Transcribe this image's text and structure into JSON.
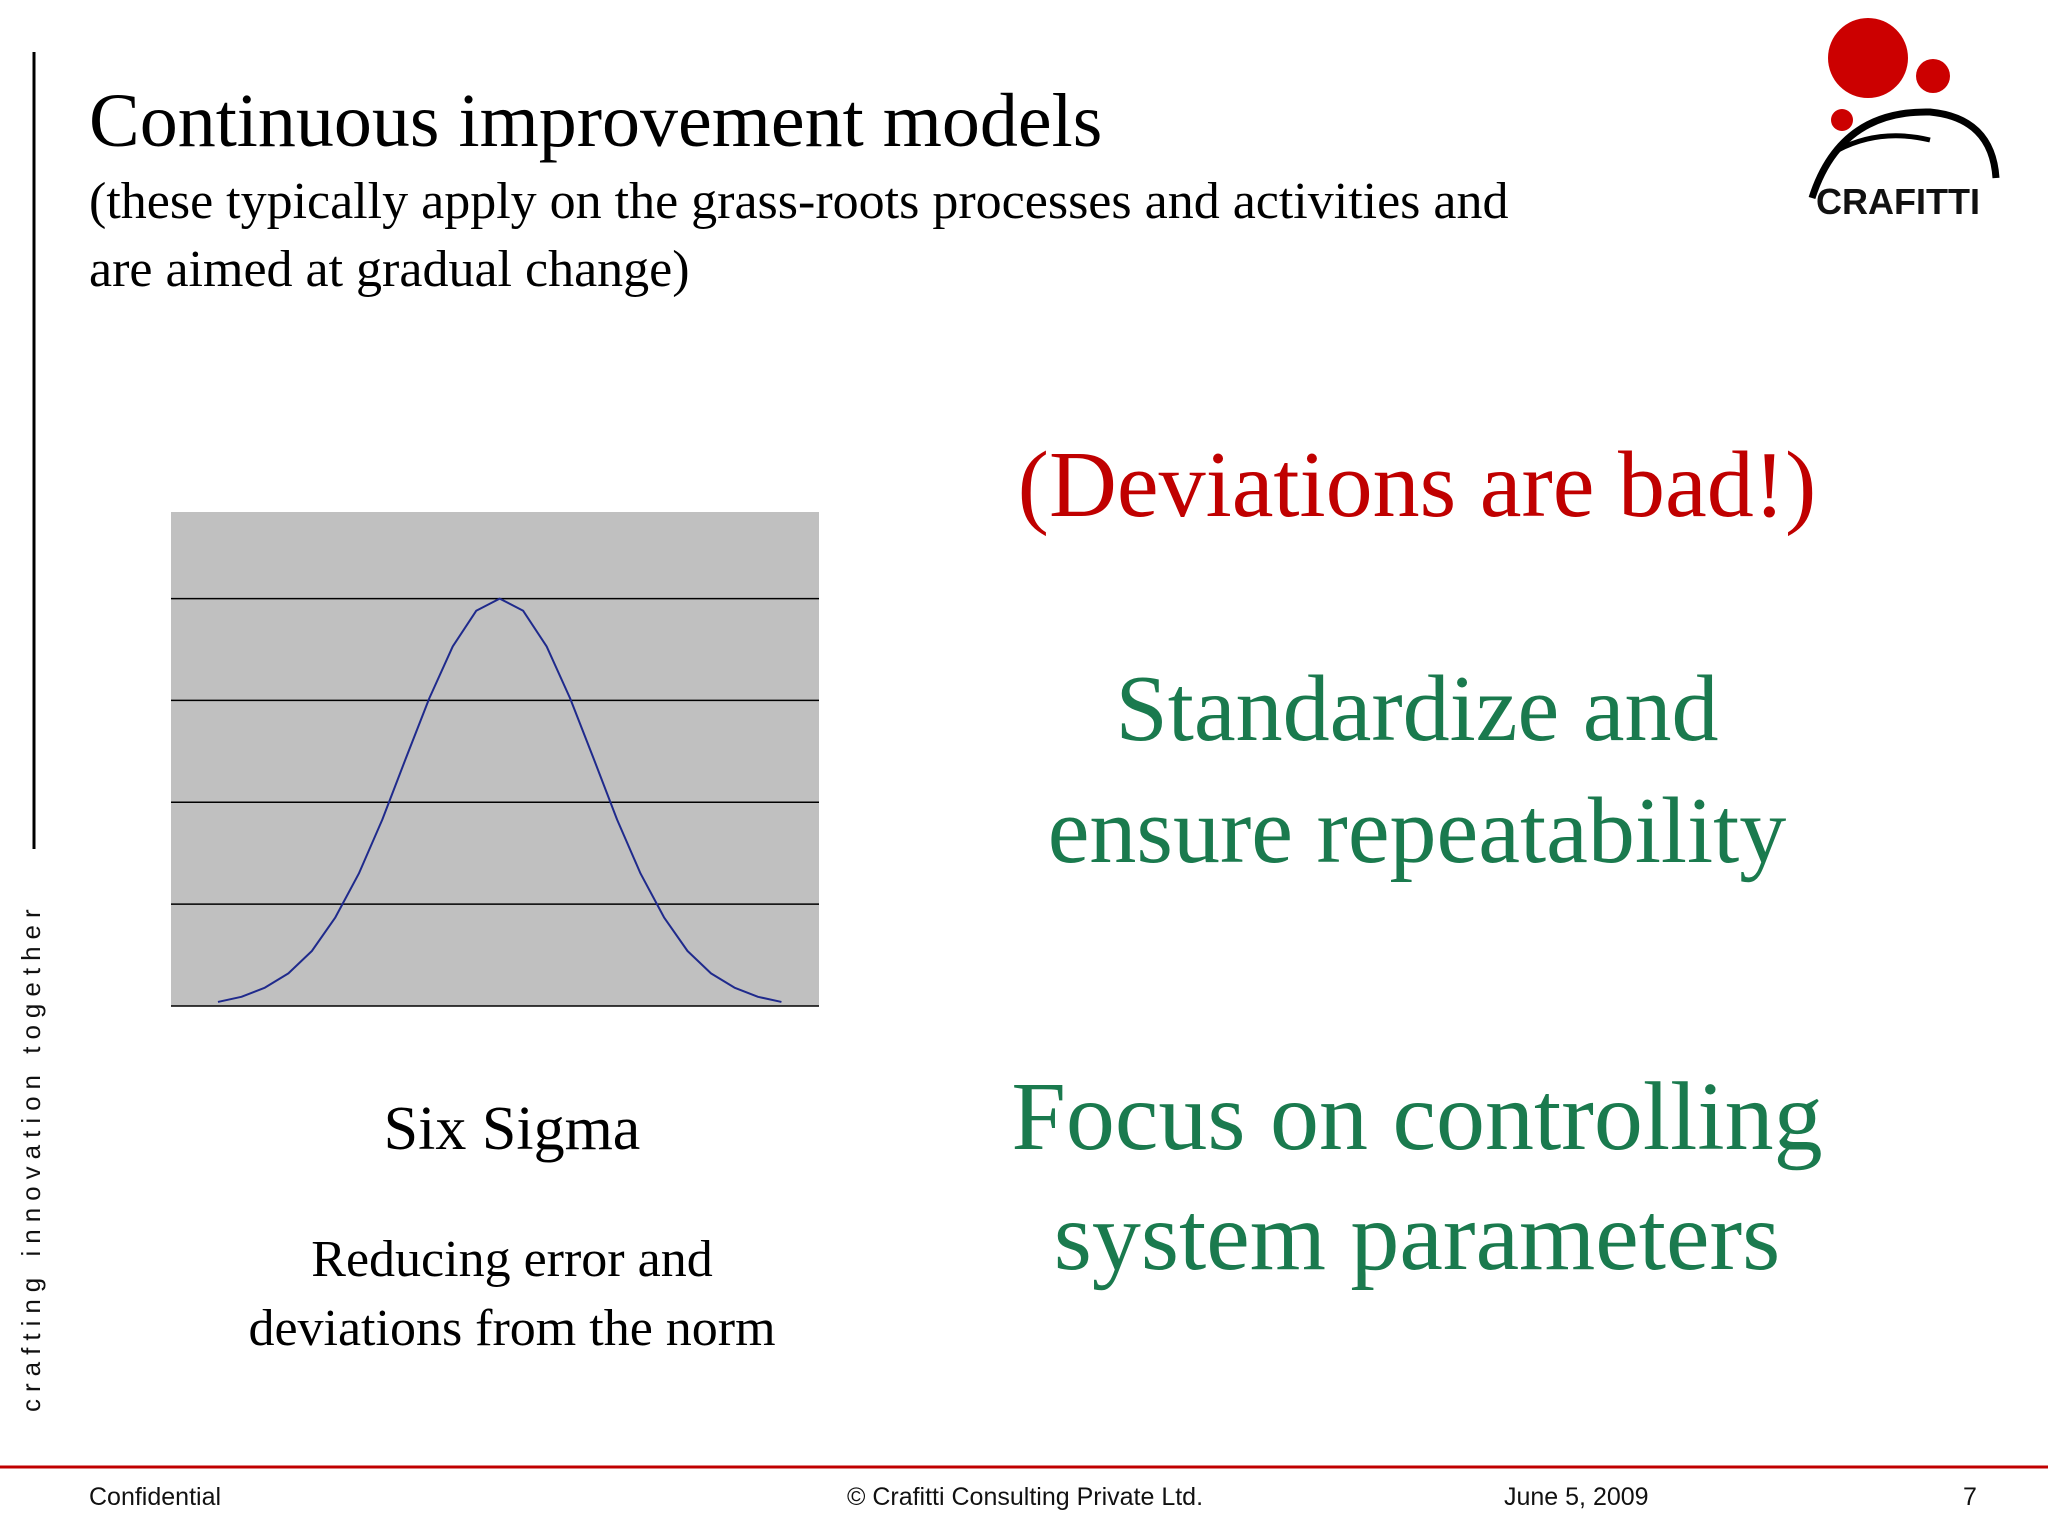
{
  "header": {
    "title": "Continuous improvement models",
    "subtitle_lines": [
      "(these typically apply on the grass-roots processes and activities and",
      "are aimed at gradual change)"
    ]
  },
  "logo": {
    "text": "CRAFITTI"
  },
  "side_text": "crafting innovation together",
  "chart_data": {
    "type": "line",
    "x": [
      -3,
      -2.75,
      -2.5,
      -2.25,
      -2,
      -1.75,
      -1.5,
      -1.25,
      -1,
      -0.75,
      -0.5,
      -0.25,
      0,
      0.25,
      0.5,
      0.75,
      1,
      1.25,
      1.5,
      1.75,
      2,
      2.25,
      2.5,
      2.75,
      3
    ],
    "values": [
      0.04,
      0.09,
      0.18,
      0.32,
      0.54,
      0.87,
      1.3,
      1.83,
      2.43,
      3.02,
      3.53,
      3.88,
      4,
      3.88,
      3.53,
      3.02,
      2.43,
      1.83,
      1.3,
      0.87,
      0.54,
      0.32,
      0.18,
      0.09,
      0.04
    ],
    "color": "#1f2a8c",
    "background": "#c0c0c0",
    "xlim": [
      -3.5,
      3.4
    ],
    "ylim": [
      0,
      4.85
    ],
    "yticks": [
      0,
      1,
      2,
      3,
      4
    ],
    "grid": true
  },
  "caption": {
    "title": "Six Sigma",
    "lines": [
      "Reducing error and",
      "deviations from the norm"
    ]
  },
  "right": {
    "heading": "(Deviations are bad!)",
    "points": [
      [
        "Standardize and",
        "ensure repeatability"
      ],
      [
        "Focus on controlling",
        "system parameters"
      ]
    ]
  },
  "footer": {
    "left": "Confidential",
    "center": "© Crafitti Consulting Private Ltd.",
    "date": "June 5, 2009",
    "page": 7
  }
}
